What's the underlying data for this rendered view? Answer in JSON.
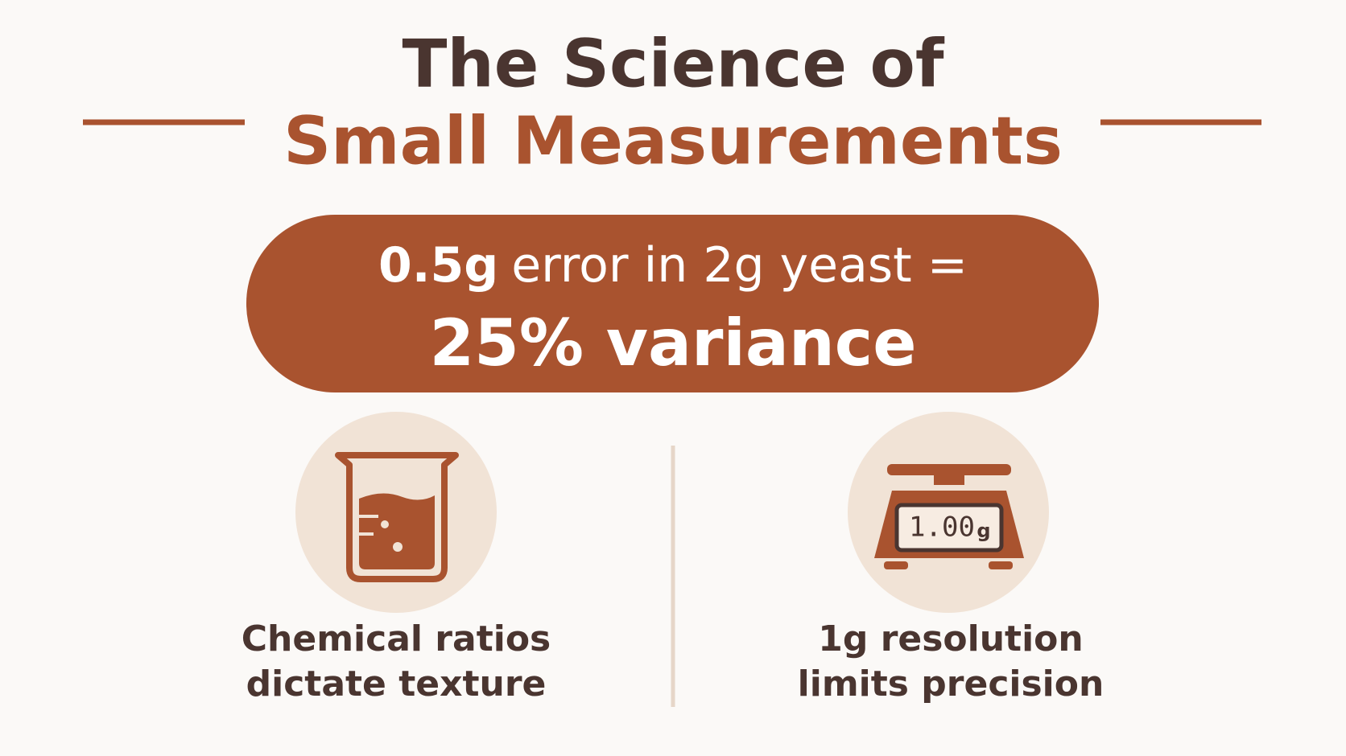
{
  "header": {
    "title_line1": "The Science of",
    "title_line2": "Small Measurements"
  },
  "highlight": {
    "amount": "0.5g",
    "context": "error in 2g yeast =",
    "result": "25% variance"
  },
  "items": [
    {
      "caption_line1": "Chemical ratios",
      "caption_line2": "dictate texture"
    },
    {
      "display_value": "1.00",
      "display_unit": "g",
      "caption_line1": "1g resolution",
      "caption_line2": "limits precision"
    }
  ]
}
